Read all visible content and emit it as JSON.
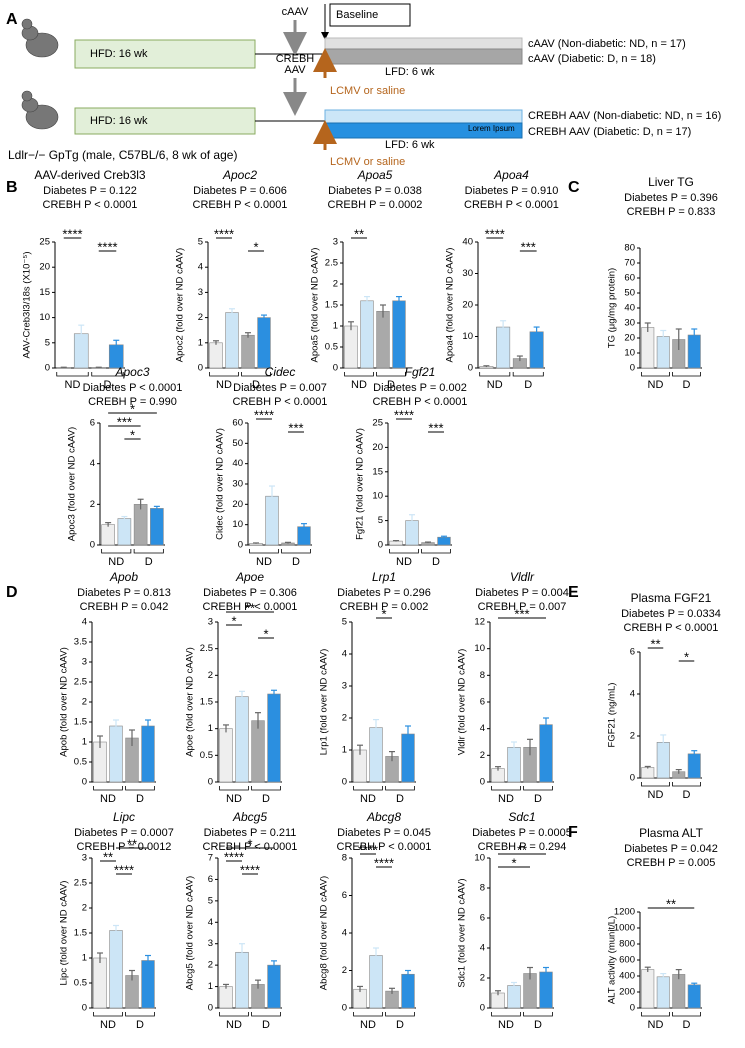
{
  "panel_labels": [
    "A",
    "B",
    "C",
    "D",
    "E",
    "F"
  ],
  "diagram": {
    "hfd": [
      "HFD: 16 wk",
      "HFD: 16 wk"
    ],
    "cAAV": "cAAV",
    "crebh_aav": [
      "CREBH",
      "AAV"
    ],
    "baseline": "Baseline",
    "lfd": [
      "LFD: 6 wk",
      "LFD: 6 wk"
    ],
    "lcmv": [
      "LCMV or saline",
      "LCMV or saline"
    ],
    "groups": [
      "cAAV (Non-diabetic: ND, n = 17)",
      "cAAV (Diabetic: D, n = 18)",
      "CREBH AAV (Non-diabetic: ND, n = 16)",
      "CREBH AAV (Diabetic: D, n = 17)"
    ],
    "overlay": "Lorem Ipsum",
    "mouse": "Ldlr−/− GpTg (male, C57BL/6, 8 wk of age)"
  },
  "chart_data": [
    {
      "type": "bar",
      "title": "AAV-derived Creb3l3",
      "stats": [
        "Diabetes P = 0.122",
        "CREBH P < 0.0001"
      ],
      "y_label": "AAV-Creb3l3/18s (X10⁻⁵)",
      "groups": [
        "ND",
        "D"
      ],
      "values": [
        0.1,
        6.8,
        0.1,
        4.6
      ],
      "errors": [
        0.05,
        1.7,
        0.05,
        0.9
      ],
      "colors": [
        "#eeeeee",
        "#cce5f6",
        "#a9a9a9",
        "#2b8fe0"
      ],
      "ylim": [
        0,
        25
      ],
      "yticks": [
        0,
        5,
        10,
        15,
        20,
        25
      ],
      "significance": [
        {
          "bars": [
            0,
            1
          ],
          "label": "****"
        },
        {
          "bars": [
            2,
            3
          ],
          "label": "****"
        }
      ]
    },
    {
      "type": "bar",
      "title": "Apoc2",
      "stats": [
        "Diabetes P = 0.606",
        "CREBH P < 0.0001"
      ],
      "y_label": "Apoc2 (fold over ND cAAV)",
      "groups": [
        "ND",
        "D"
      ],
      "values": [
        1.0,
        2.2,
        1.3,
        2.0
      ],
      "errors": [
        0.08,
        0.15,
        0.1,
        0.1
      ],
      "colors": [
        "#eeeeee",
        "#cce5f6",
        "#a9a9a9",
        "#2b8fe0"
      ],
      "ylim": [
        0,
        5
      ],
      "yticks": [
        0,
        1,
        2,
        3,
        4,
        5
      ],
      "significance": [
        {
          "bars": [
            0,
            1
          ],
          "label": "****"
        },
        {
          "bars": [
            2,
            3
          ],
          "label": "*"
        }
      ]
    },
    {
      "type": "bar",
      "title": "Apoa5",
      "stats": [
        "Diabetes P = 0.038",
        "CREBH P = 0.0002"
      ],
      "y_label": "Apoa5 (fold over ND cAAV)",
      "groups": [
        "ND",
        "D"
      ],
      "values": [
        1.0,
        1.6,
        1.35,
        1.6
      ],
      "errors": [
        0.1,
        0.1,
        0.15,
        0.1
      ],
      "colors": [
        "#eeeeee",
        "#cce5f6",
        "#a9a9a9",
        "#2b8fe0"
      ],
      "ylim": [
        0,
        3
      ],
      "yticks": [
        0,
        0.5,
        1,
        1.5,
        2,
        2.5,
        3
      ],
      "significance": [
        {
          "bars": [
            0,
            1
          ],
          "label": "**"
        }
      ]
    },
    {
      "type": "bar",
      "title": "Apoa4",
      "stats": [
        "Diabetes P = 0.910",
        "CREBH P < 0.0001"
      ],
      "y_label": "Apoa4 (fold over ND cAAV)",
      "groups": [
        "ND",
        "D"
      ],
      "values": [
        0.5,
        13,
        3,
        11.5
      ],
      "errors": [
        0.2,
        2,
        0.8,
        1.5
      ],
      "colors": [
        "#eeeeee",
        "#cce5f6",
        "#a9a9a9",
        "#2b8fe0"
      ],
      "ylim": [
        0,
        40
      ],
      "yticks": [
        0,
        10,
        20,
        30,
        40
      ],
      "significance": [
        {
          "bars": [
            0,
            1
          ],
          "label": "****"
        },
        {
          "bars": [
            2,
            3
          ],
          "label": "***"
        }
      ]
    },
    {
      "type": "bar",
      "title": "Liver TG",
      "stats": [
        "Diabetes P = 0.396",
        "CREBH P = 0.833"
      ],
      "y_label": "TG (μg/mg protein)",
      "groups": [
        "ND",
        "D"
      ],
      "values": [
        27,
        21,
        19,
        22
      ],
      "errors": [
        3,
        4,
        7,
        4
      ],
      "colors": [
        "#eeeeee",
        "#cce5f6",
        "#a9a9a9",
        "#2b8fe0"
      ],
      "ylim": [
        0,
        80
      ],
      "yticks": [
        0,
        10,
        20,
        30,
        40,
        50,
        60,
        70,
        80
      ],
      "significance": []
    },
    {
      "type": "bar",
      "title": "Apoc3",
      "stats": [
        "Diabetes P < 0.0001",
        "CREBH P = 0.990"
      ],
      "y_label": "Apoc3 (fold over ND cAAV)",
      "groups": [
        "ND",
        "D"
      ],
      "values": [
        1.0,
        1.3,
        2.0,
        1.8
      ],
      "errors": [
        0.1,
        0.1,
        0.25,
        0.1
      ],
      "colors": [
        "#eeeeee",
        "#cce5f6",
        "#a9a9a9",
        "#2b8fe0"
      ],
      "ylim": [
        0,
        6
      ],
      "yticks": [
        0,
        2,
        4,
        6
      ],
      "significance": [
        {
          "bars": [
            0,
            3
          ],
          "label": "*"
        },
        {
          "bars": [
            0,
            2
          ],
          "label": "***"
        },
        {
          "bars": [
            1,
            2
          ],
          "label": "*"
        }
      ]
    },
    {
      "type": "bar",
      "title": "Cidec",
      "stats": [
        "Diabetes P = 0.007",
        "CREBH P < 0.0001"
      ],
      "y_label": "Cidec (fold over ND cAAV)",
      "groups": [
        "ND",
        "D"
      ],
      "values": [
        0.8,
        24,
        1,
        9
      ],
      "errors": [
        0.2,
        5,
        0.3,
        1.5
      ],
      "colors": [
        "#eeeeee",
        "#cce5f6",
        "#a9a9a9",
        "#2b8fe0"
      ],
      "ylim": [
        0,
        60
      ],
      "yticks": [
        0,
        10,
        20,
        30,
        40,
        50,
        60
      ],
      "significance": [
        {
          "bars": [
            0,
            1
          ],
          "label": "****"
        },
        {
          "bars": [
            2,
            3
          ],
          "label": "***"
        }
      ]
    },
    {
      "type": "bar",
      "title": "Fgf21",
      "stats": [
        "Diabetes P = 0.002",
        "CREBH P < 0.0001"
      ],
      "y_label": "Fgf21 (fold over ND cAAV)",
      "groups": [
        "ND",
        "D"
      ],
      "values": [
        0.8,
        5,
        0.5,
        1.6
      ],
      "errors": [
        0.1,
        1.2,
        0.1,
        0.2
      ],
      "colors": [
        "#eeeeee",
        "#cce5f6",
        "#a9a9a9",
        "#2b8fe0"
      ],
      "ylim": [
        0,
        25
      ],
      "yticks": [
        0,
        5,
        10,
        15,
        20,
        25
      ],
      "significance": [
        {
          "bars": [
            0,
            1
          ],
          "label": "****"
        },
        {
          "bars": [
            2,
            3
          ],
          "label": "***"
        }
      ]
    },
    {
      "type": "bar",
      "title": "Apob",
      "stats": [
        "Diabetes P = 0.813",
        "CREBH P = 0.042"
      ],
      "y_label": "Apob (fold over ND cAAV)",
      "groups": [
        "ND",
        "D"
      ],
      "values": [
        1.0,
        1.4,
        1.1,
        1.4
      ],
      "errors": [
        0.15,
        0.15,
        0.2,
        0.15
      ],
      "colors": [
        "#eeeeee",
        "#cce5f6",
        "#a9a9a9",
        "#2b8fe0"
      ],
      "ylim": [
        0,
        4
      ],
      "yticks": [
        0,
        0.5,
        1,
        1.5,
        2,
        2.5,
        3,
        3.5,
        4
      ],
      "significance": []
    },
    {
      "type": "bar",
      "title": "Apoe",
      "stats": [
        "Diabetes P = 0.306",
        "CREBH P < 0.0001"
      ],
      "y_label": "Apoe (fold over ND cAAV)",
      "groups": [
        "ND",
        "D"
      ],
      "values": [
        1.0,
        1.6,
        1.15,
        1.65
      ],
      "errors": [
        0.07,
        0.1,
        0.15,
        0.07
      ],
      "colors": [
        "#eeeeee",
        "#cce5f6",
        "#a9a9a9",
        "#2b8fe0"
      ],
      "ylim": [
        0,
        3
      ],
      "yticks": [
        0,
        0.5,
        1,
        1.5,
        2,
        2.5,
        3
      ],
      "significance": [
        {
          "bars": [
            0,
            3
          ],
          "label": "**"
        },
        {
          "bars": [
            0,
            1
          ],
          "label": "*"
        },
        {
          "bars": [
            2,
            3
          ],
          "label": "*"
        }
      ]
    },
    {
      "type": "bar",
      "title": "Lrp1",
      "stats": [
        "Diabetes P = 0.296",
        "CREBH P = 0.002"
      ],
      "y_label": "Lrp1 (fold over ND cAAV)",
      "groups": [
        "ND",
        "D"
      ],
      "values": [
        1.0,
        1.7,
        0.8,
        1.5
      ],
      "errors": [
        0.15,
        0.25,
        0.15,
        0.25
      ],
      "colors": [
        "#eeeeee",
        "#cce5f6",
        "#a9a9a9",
        "#2b8fe0"
      ],
      "ylim": [
        0,
        5
      ],
      "yticks": [
        0,
        1,
        2,
        3,
        4,
        5
      ],
      "significance": [
        {
          "bars": [
            1,
            2
          ],
          "label": "*"
        }
      ]
    },
    {
      "type": "bar",
      "title": "Vldlr",
      "stats": [
        "Diabetes P = 0.004",
        "CREBH P = 0.007"
      ],
      "y_label": "Vldlr (fold over ND cAAV)",
      "groups": [
        "ND",
        "D"
      ],
      "values": [
        1.0,
        2.6,
        2.6,
        4.3
      ],
      "errors": [
        0.15,
        0.4,
        0.6,
        0.5
      ],
      "colors": [
        "#eeeeee",
        "#cce5f6",
        "#a9a9a9",
        "#2b8fe0"
      ],
      "ylim": [
        0,
        12
      ],
      "yticks": [
        0,
        2,
        4,
        6,
        8,
        10,
        12
      ],
      "significance": [
        {
          "bars": [
            0,
            3
          ],
          "label": "***"
        }
      ]
    },
    {
      "type": "bar",
      "title": "Plasma FGF21",
      "stats": [
        "Diabetes P = 0.0334",
        "CREBH P < 0.0001"
      ],
      "y_label": "FGF21 (ng/mL)",
      "groups": [
        "ND",
        "D"
      ],
      "values": [
        0.5,
        1.7,
        0.3,
        1.15
      ],
      "errors": [
        0.05,
        0.35,
        0.1,
        0.15
      ],
      "colors": [
        "#eeeeee",
        "#cce5f6",
        "#a9a9a9",
        "#2b8fe0"
      ],
      "ylim": [
        0,
        6
      ],
      "yticks": [
        0,
        2,
        4,
        6
      ],
      "significance": [
        {
          "bars": [
            0,
            1
          ],
          "label": "**"
        },
        {
          "bars": [
            2,
            3
          ],
          "label": "*"
        }
      ]
    },
    {
      "type": "bar",
      "title": "Lipc",
      "stats": [
        "Diabetes P = 0.0007",
        "CREBH P = 0.0012"
      ],
      "y_label": "Lipc (fold over ND cAAV)",
      "groups": [
        "ND",
        "D"
      ],
      "values": [
        1.0,
        1.55,
        0.65,
        0.95
      ],
      "errors": [
        0.1,
        0.1,
        0.1,
        0.1
      ],
      "colors": [
        "#eeeeee",
        "#cce5f6",
        "#a9a9a9",
        "#2b8fe0"
      ],
      "ylim": [
        0,
        3
      ],
      "yticks": [
        0,
        0.5,
        1,
        1.5,
        2,
        2.5,
        3
      ],
      "significance": [
        {
          "bars": [
            1,
            3
          ],
          "label": "**"
        },
        {
          "bars": [
            0,
            1
          ],
          "label": "**"
        },
        {
          "bars": [
            1,
            2
          ],
          "label": "****"
        }
      ]
    },
    {
      "type": "bar",
      "title": "Abcg5",
      "stats": [
        "Diabetes P = 0.211",
        "CREBH P < 0.0001"
      ],
      "y_label": "Abcg5 (fold over ND cAAV)",
      "groups": [
        "ND",
        "D"
      ],
      "values": [
        1.0,
        2.6,
        1.1,
        2.0
      ],
      "errors": [
        0.1,
        0.4,
        0.2,
        0.2
      ],
      "colors": [
        "#eeeeee",
        "#cce5f6",
        "#a9a9a9",
        "#2b8fe0"
      ],
      "ylim": [
        0,
        7
      ],
      "yticks": [
        0,
        1,
        2,
        3,
        4,
        5,
        6,
        7
      ],
      "significance": [
        {
          "bars": [
            0,
            3
          ],
          "label": "*"
        },
        {
          "bars": [
            0,
            1
          ],
          "label": "****"
        },
        {
          "bars": [
            1,
            2
          ],
          "label": "****"
        }
      ]
    },
    {
      "type": "bar",
      "title": "Abcg8",
      "stats": [
        "Diabetes P = 0.045",
        "CREBH P < 0.0001"
      ],
      "y_label": "Abcg8 (fold over ND cAAV)",
      "groups": [
        "ND",
        "D"
      ],
      "values": [
        1.0,
        2.8,
        0.9,
        1.8
      ],
      "errors": [
        0.15,
        0.4,
        0.15,
        0.2
      ],
      "colors": [
        "#eeeeee",
        "#cce5f6",
        "#a9a9a9",
        "#2b8fe0"
      ],
      "ylim": [
        0,
        8
      ],
      "yticks": [
        0,
        2,
        4,
        6,
        8
      ],
      "significance": [
        {
          "bars": [
            0,
            1
          ],
          "label": "****"
        },
        {
          "bars": [
            1,
            2
          ],
          "label": "****"
        }
      ]
    },
    {
      "type": "bar",
      "title": "Sdc1",
      "stats": [
        "Diabetes P = 0.0005",
        "CREBH P = 0.294"
      ],
      "y_label": "Sdc1 (fold over ND cAAV)",
      "groups": [
        "ND",
        "D"
      ],
      "values": [
        1.0,
        1.5,
        2.3,
        2.4
      ],
      "errors": [
        0.15,
        0.2,
        0.4,
        0.3
      ],
      "colors": [
        "#eeeeee",
        "#cce5f6",
        "#a9a9a9",
        "#2b8fe0"
      ],
      "ylim": [
        0,
        10
      ],
      "yticks": [
        0,
        2,
        4,
        6,
        8,
        10
      ],
      "significance": [
        {
          "bars": [
            0,
            3
          ],
          "label": "**"
        },
        {
          "bars": [
            0,
            2
          ],
          "label": "*"
        }
      ]
    },
    {
      "type": "bar",
      "title": "Plasma ALT",
      "stats": [
        "Diabetes P = 0.042",
        "CREBH P = 0.005"
      ],
      "y_label": "ALT activity (munit/L)",
      "groups": [
        "ND",
        "D"
      ],
      "values": [
        480,
        390,
        420,
        290
      ],
      "errors": [
        30,
        40,
        60,
        20
      ],
      "colors": [
        "#eeeeee",
        "#cce5f6",
        "#a9a9a9",
        "#2b8fe0"
      ],
      "ylim": [
        0,
        1200
      ],
      "yticks": [
        0,
        200,
        400,
        600,
        800,
        1000,
        1200
      ],
      "significance": [
        {
          "bars": [
            0,
            3
          ],
          "label": "**"
        }
      ]
    }
  ]
}
